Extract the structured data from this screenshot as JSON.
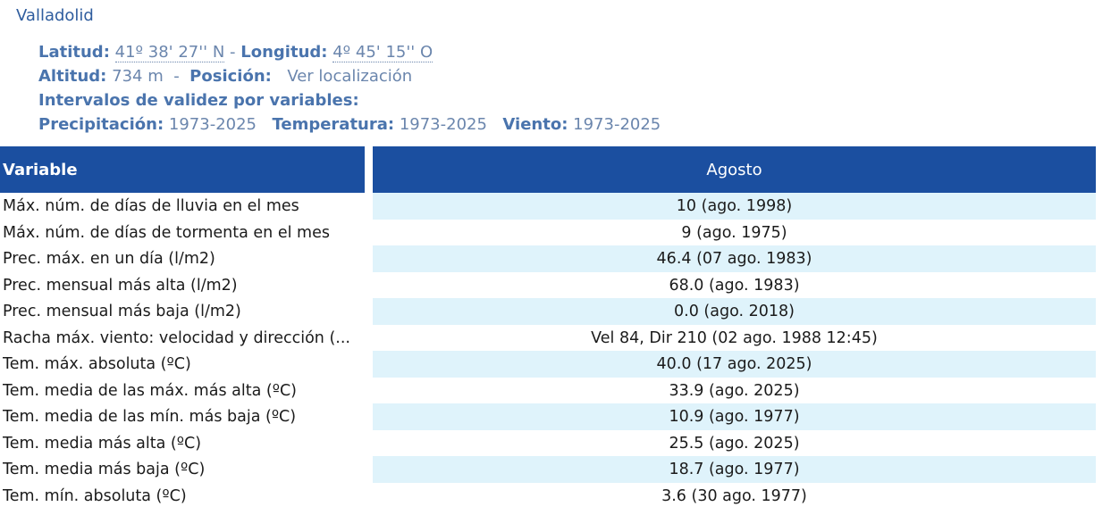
{
  "station": {
    "name": "Valladolid",
    "lat_label": "Latitud:",
    "lat_value": "41º 38' 27'' N",
    "lon_label": "Longitud:",
    "lon_value": "4º 45' 15'' O",
    "alt_label": "Altitud:",
    "alt_value": "734 m",
    "pos_label": "Posición:",
    "pos_link": "Ver localización",
    "intervals_label": "Intervalos de validez por variables:",
    "precip_label": "Precipitación:",
    "precip_value": "1973-2025",
    "temp_label": "Temperatura:",
    "temp_value": "1973-2025",
    "wind_label": "Viento:",
    "wind_value": "1973-2025"
  },
  "table": {
    "header_variable": "Variable",
    "header_month": "Agosto",
    "rows": [
      {
        "name": "Máx. núm. de días de lluvia en el mes",
        "value": "10 (ago. 1998)"
      },
      {
        "name": "Máx. núm. de días de tormenta en el mes",
        "value": "9 (ago. 1975)"
      },
      {
        "name": "Prec. máx. en un día (l/m2)",
        "value": "46.4 (07 ago. 1983)"
      },
      {
        "name": "Prec. mensual más alta (l/m2)",
        "value": "68.0 (ago. 1983)"
      },
      {
        "name": "Prec. mensual más baja (l/m2)",
        "value": "0.0 (ago. 2018)"
      },
      {
        "name": "Racha máx. viento: velocidad y dirección (...",
        "value": "Vel 84, Dir 210 (02 ago. 1988 12:45)"
      },
      {
        "name": "Tem. máx. absoluta (ºC)",
        "value": "40.0 (17 ago. 2025)"
      },
      {
        "name": "Tem. media de las máx. más alta (ºC)",
        "value": "33.9 (ago. 2025)"
      },
      {
        "name": "Tem. media de las mín. más baja (ºC)",
        "value": "10.9 (ago. 1977)"
      },
      {
        "name": "Tem. media más alta (ºC)",
        "value": "25.5 (ago. 2025)"
      },
      {
        "name": "Tem. media más baja (ºC)",
        "value": "18.7 (ago. 1977)"
      },
      {
        "name": "Tem. mín. absoluta (ºC)",
        "value": "3.6 (30 ago. 1977)"
      }
    ]
  },
  "colors": {
    "header_bg": "#1b4fa0",
    "row_alt_bg": "#dff3fb",
    "label_blue": "#4a74ad"
  }
}
